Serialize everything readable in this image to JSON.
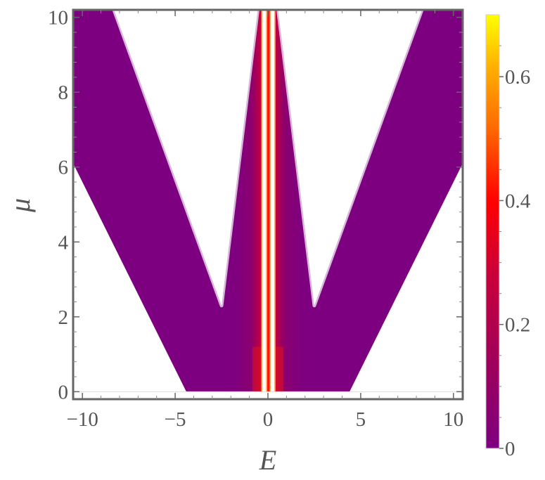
{
  "chart_data": {
    "type": "heatmap",
    "title": "",
    "xlabel": "E",
    "ylabel": "μ",
    "xlim": [
      -10.5,
      10.5
    ],
    "ylim": [
      -0.2,
      10.2
    ],
    "x_ticks": [
      {
        "value": -10,
        "label": "−10"
      },
      {
        "value": -5,
        "label": "−5"
      },
      {
        "value": 0,
        "label": "0"
      },
      {
        "value": 5,
        "label": "5"
      },
      {
        "value": 10,
        "label": "10"
      }
    ],
    "y_ticks": [
      {
        "value": 0,
        "label": "0"
      },
      {
        "value": 2,
        "label": "2"
      },
      {
        "value": 4,
        "label": "4"
      },
      {
        "value": 6,
        "label": "6"
      },
      {
        "value": 8,
        "label": "8"
      },
      {
        "value": 10,
        "label": "10"
      }
    ],
    "regions": {
      "outer_boundary": [
        {
          "E": -10.5,
          "mu": 6.1
        },
        {
          "E": -4.4,
          "mu": 0
        },
        {
          "E": 4.4,
          "mu": 0
        },
        {
          "E": 10.5,
          "mu": 6.1
        }
      ],
      "inner_boundary_left": [
        {
          "E": -8.3,
          "mu": 10.2
        },
        {
          "E": -2.5,
          "mu": 2.3
        },
        {
          "E": -0.55,
          "mu": 10.2
        }
      ],
      "inner_boundary_right": [
        {
          "E": 0.55,
          "mu": 10.2
        },
        {
          "E": 2.5,
          "mu": 2.3
        },
        {
          "E": 8.3,
          "mu": 10.2
        }
      ],
      "white_gaps": [
        {
          "E_min": -0.3,
          "E_max": -0.1
        },
        {
          "E_min": 0.15,
          "E_max": 0.35
        }
      ],
      "background_value": 0.05,
      "peak_value": 0.6,
      "peak_center_E": 0.0
    },
    "colorbar": {
      "min": 0,
      "max": 0.7,
      "ticks": [
        {
          "value": 0,
          "label": "0"
        },
        {
          "value": 0.2,
          "label": "0.2"
        },
        {
          "value": 0.4,
          "label": "0.4"
        },
        {
          "value": 0.6,
          "label": "0.6"
        }
      ],
      "colors": [
        "#7d0080",
        "#9a0060",
        "#c8003a",
        "#ff0000",
        "#ff6a00",
        "#ffb000",
        "#ffff00"
      ]
    },
    "grid": false,
    "legend": "colorbar-right"
  }
}
